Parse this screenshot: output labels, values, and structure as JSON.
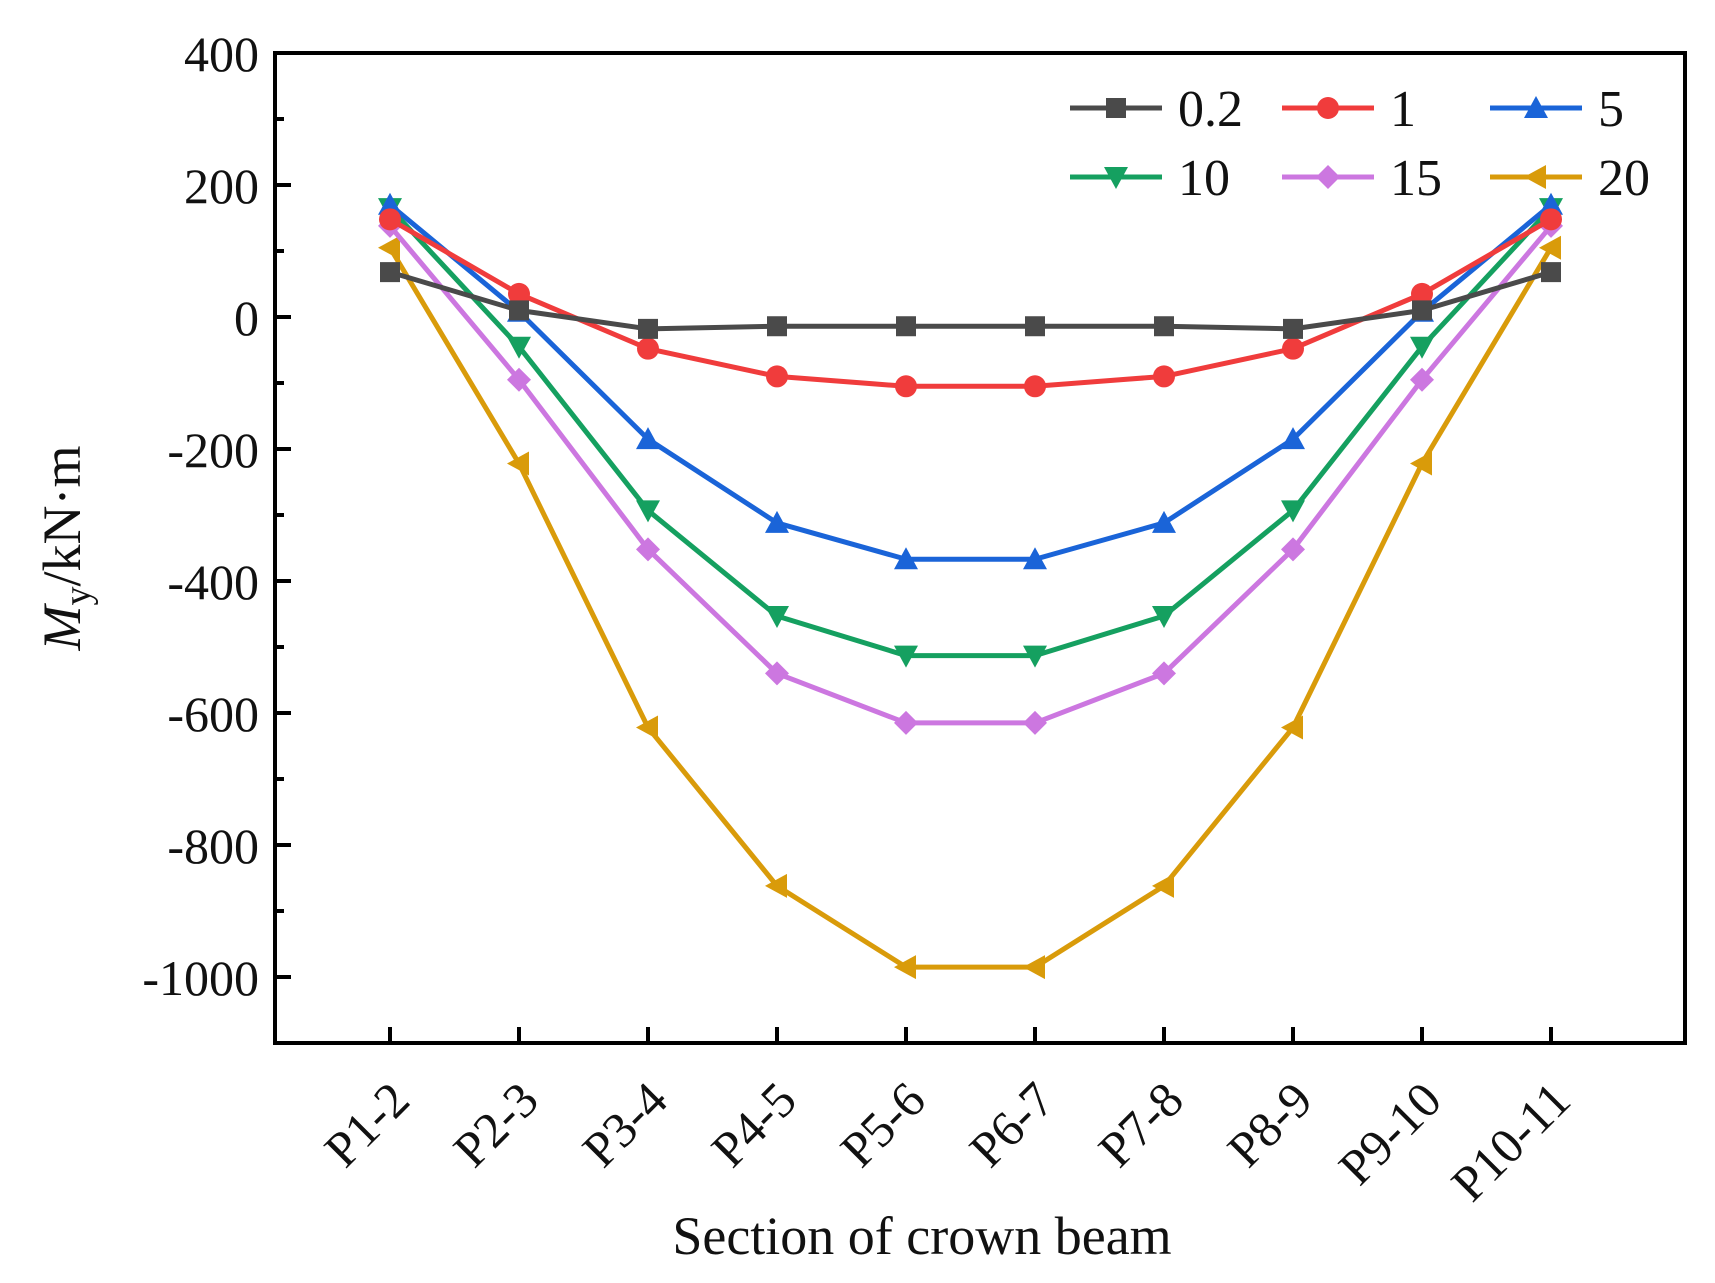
{
  "chart_data": {
    "type": "line",
    "title": "",
    "xlabel": "Section of crown beam",
    "ylabel_main": "M",
    "ylabel_sub": "y",
    "ylabel_unit": "/kN·m",
    "categories": [
      "P1-2",
      "P2-3",
      "P3-4",
      "P4-5",
      "P5-6",
      "P6-7",
      "P7-8",
      "P8-9",
      "P9-10",
      "P10-11"
    ],
    "ylim": [
      -1100,
      400
    ],
    "yticks": [
      400,
      200,
      0,
      -200,
      -400,
      -600,
      -800,
      -1000
    ],
    "ytick_labels": [
      "400",
      "200",
      "0",
      "-200",
      "-400",
      "-600",
      "-800",
      "-1000"
    ],
    "legend_position": "top-right",
    "series": [
      {
        "name": "0.2",
        "color": "#4a4a4a",
        "marker": "square",
        "values": [
          68,
          10,
          -18,
          -14,
          -14,
          -14,
          -14,
          -18,
          10,
          68
        ]
      },
      {
        "name": "1",
        "color": "#f03c3c",
        "marker": "circle",
        "values": [
          148,
          35,
          -48,
          -90,
          -105,
          -105,
          -90,
          -48,
          35,
          148
        ]
      },
      {
        "name": "5",
        "color": "#1a64d8",
        "marker": "triangle-up",
        "values": [
          170,
          8,
          -185,
          -312,
          -367,
          -367,
          -312,
          -185,
          8,
          170
        ]
      },
      {
        "name": "10",
        "color": "#15a060",
        "marker": "triangle-down",
        "values": [
          165,
          -45,
          -293,
          -453,
          -513,
          -513,
          -453,
          -293,
          -45,
          165
        ]
      },
      {
        "name": "15",
        "color": "#cc77e0",
        "marker": "diamond",
        "values": [
          138,
          -95,
          -352,
          -540,
          -615,
          -615,
          -540,
          -352,
          -95,
          138
        ]
      },
      {
        "name": "20",
        "color": "#d99b0a",
        "marker": "triangle-left",
        "values": [
          105,
          -222,
          -622,
          -862,
          -985,
          -985,
          -862,
          -622,
          -222,
          105
        ]
      }
    ]
  }
}
